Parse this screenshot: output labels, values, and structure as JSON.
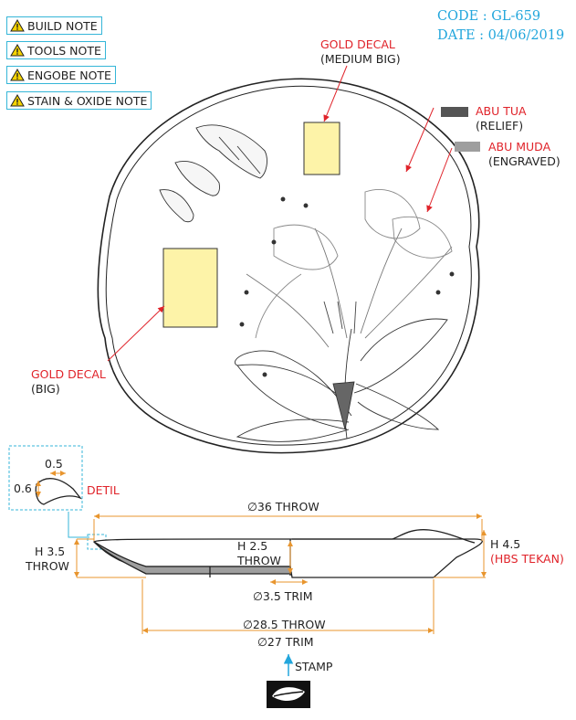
{
  "notes": [
    {
      "label": "BUILD NOTE"
    },
    {
      "label": "TOOLS NOTE"
    },
    {
      "label": "ENGOBE NOTE"
    },
    {
      "label": "STAIN & OXIDE NOTE"
    }
  ],
  "header": {
    "code": "CODE : GL-659",
    "date": "DATE : 04/06/2019"
  },
  "decals": {
    "medium_title": "GOLD DECAL",
    "medium_sub": "(MEDIUM BIG)",
    "big_title": "GOLD DECAL",
    "big_sub": "(BIG)"
  },
  "legend": {
    "tua_title": "ABU TUA",
    "tua_sub": "(RELIEF)",
    "muda_title": "ABU MUDA",
    "muda_sub": "(ENGRAVED)"
  },
  "detail": {
    "dim_width": "0.5",
    "dim_height": "0.6",
    "label": "DETIL"
  },
  "dimensions": {
    "throw_36": "∅36 THROW",
    "h35": "H 3.5",
    "h35_sub": "THROW",
    "h25": "H 2.5",
    "h25_sub": "THROW",
    "h45": "H 4.5",
    "h45_sub": "(HBS TEKAN)",
    "trim_35": "∅3.5 TRIM",
    "throw_285": "∅28.5 THROW",
    "trim_27": "∅27 TRIM"
  },
  "stamp": {
    "label": "STAMP"
  },
  "colors": {
    "accent_blue": "#22a6dc",
    "note_border": "#35b6d8",
    "dim_orange": "#e8952e",
    "annotation_red": "#e0232a",
    "decal_fill": "#fdf3a8",
    "relief_gray": "#555555",
    "engraved_gray": "#9e9e9e",
    "warning_yellow": "#f5d300"
  }
}
